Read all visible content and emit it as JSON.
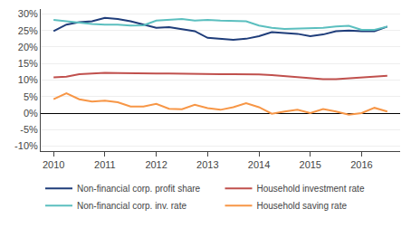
{
  "chart_data": {
    "type": "line",
    "x": [
      2010.0,
      2010.25,
      2010.5,
      2010.75,
      2011.0,
      2011.25,
      2011.5,
      2011.75,
      2012.0,
      2012.25,
      2012.5,
      2012.75,
      2013.0,
      2013.25,
      2013.5,
      2013.75,
      2014.0,
      2014.25,
      2014.5,
      2014.75,
      2015.0,
      2015.25,
      2015.5,
      2015.75,
      2016.0,
      2016.25,
      2016.5
    ],
    "series": [
      {
        "name": "Non-financial corp. profit share",
        "color": "#1f3d7a",
        "values": [
          0.248,
          0.268,
          0.275,
          0.278,
          0.288,
          0.285,
          0.278,
          0.268,
          0.258,
          0.26,
          0.255,
          0.248,
          0.228,
          0.225,
          0.222,
          0.225,
          0.233,
          0.245,
          0.243,
          0.24,
          0.233,
          0.238,
          0.248,
          0.25,
          0.248,
          0.248,
          0.262
        ]
      },
      {
        "name": "Household investment rate",
        "color": "#c0504d",
        "values": [
          0.108,
          0.11,
          0.118,
          0.12,
          0.122,
          0.121,
          0.12,
          0.12,
          0.12,
          0.12,
          0.119,
          0.118,
          0.118,
          0.118,
          0.118,
          0.118,
          0.117,
          0.115,
          0.112,
          0.108,
          0.105,
          0.103,
          0.103,
          0.105,
          0.108,
          0.11,
          0.113
        ]
      },
      {
        "name": "Non-financial corp. inv. rate",
        "color": "#5bbfbf",
        "values": [
          0.282,
          0.278,
          0.272,
          0.27,
          0.268,
          0.268,
          0.265,
          0.266,
          0.28,
          0.282,
          0.285,
          0.28,
          0.282,
          0.28,
          0.28,
          0.278,
          0.265,
          0.258,
          0.255,
          0.256,
          0.255,
          0.258,
          0.262,
          0.264,
          0.252,
          0.252,
          0.262
        ]
      },
      {
        "name": "Household saving rate",
        "color": "#f79646",
        "values": [
          0.042,
          0.06,
          0.042,
          0.035,
          0.038,
          0.033,
          0.02,
          0.02,
          0.028,
          0.013,
          0.012,
          0.025,
          0.015,
          0.01,
          0.018,
          0.03,
          0.018,
          -0.002,
          0.005,
          0.01,
          0.0,
          0.012,
          0.005,
          -0.005,
          0.0,
          0.016,
          0.005
        ]
      }
    ],
    "xlim": [
      2009.75,
      2016.75
    ],
    "xticks": [
      2010,
      2011,
      2012,
      2013,
      2014,
      2015,
      2016
    ],
    "ylim": [
      -0.115,
      0.315
    ],
    "yticks": [
      {
        "value": -0.1,
        "label": "-10%"
      },
      {
        "value": -0.05,
        "label": "-5%"
      },
      {
        "value": 0.0,
        "label": "0%"
      },
      {
        "value": 0.05,
        "label": "5%"
      },
      {
        "value": 0.1,
        "label": "10%"
      },
      {
        "value": 0.15,
        "label": "15%"
      },
      {
        "value": 0.2,
        "label": "20%"
      },
      {
        "value": 0.25,
        "label": "25%"
      },
      {
        "value": 0.3,
        "label": "30%"
      }
    ],
    "grid": "y",
    "legend": "bottom"
  }
}
